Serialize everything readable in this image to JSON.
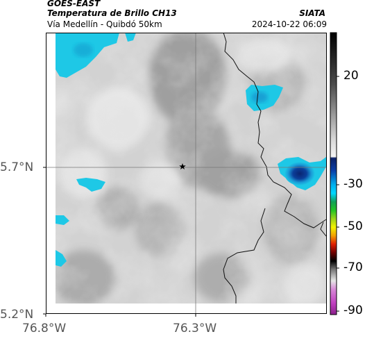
{
  "header": {
    "satellite": "GOES-EAST",
    "product": "Temperatura de Brillo CH13",
    "region": "Vía Medellín - Quibdó 50km",
    "agency": "SIATA",
    "datetime": "2024-10-22 06:09"
  },
  "map": {
    "lat_labels": [
      "5.7°N",
      "5.2°N"
    ],
    "lon_labels": [
      "76.8°W",
      "76.3°W"
    ],
    "station_marker": "star-icon",
    "colors": {
      "cold_cyan": "#1ec8e6",
      "deep_blue": "#08307a",
      "grid_line": "#777777",
      "border_line": "#111111"
    }
  },
  "colorbar": {
    "ticks": [
      "20",
      "-30",
      "-50",
      "-70",
      "-90"
    ],
    "colors": {
      "black": "#000000",
      "blue": "#0a3fa8",
      "cyan": "#00d8ff",
      "green": "#22c422",
      "yellow": "#f2f200",
      "red": "#e02000",
      "magenta": "#c040c0"
    }
  }
}
